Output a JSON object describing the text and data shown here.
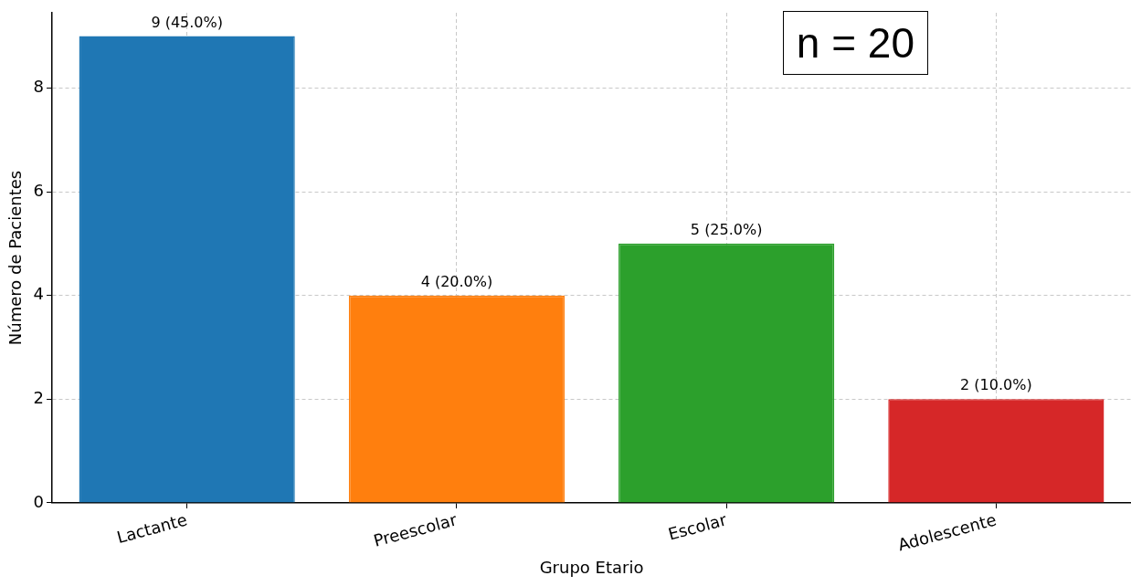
{
  "chart_data": {
    "type": "bar",
    "xlabel": "Grupo Etario",
    "ylabel": "Número de Pacientes",
    "categories": [
      "Lactante",
      "Preescolar",
      "Escolar",
      "Adolescente"
    ],
    "values": [
      9,
      4,
      5,
      2
    ],
    "colors": [
      "#1f77b4",
      "#ff7f0e",
      "#2ca02c",
      "#d62728"
    ],
    "value_labels": [
      "9 (45.0%)",
      "4 (20.0%)",
      "5 (25.0%)",
      "2 (10.0%)"
    ],
    "ylim": [
      0,
      9.45
    ],
    "yticks": [
      0,
      2,
      4,
      6,
      8
    ],
    "grid": true,
    "legend": false,
    "annotations": [
      "n = 20"
    ]
  }
}
